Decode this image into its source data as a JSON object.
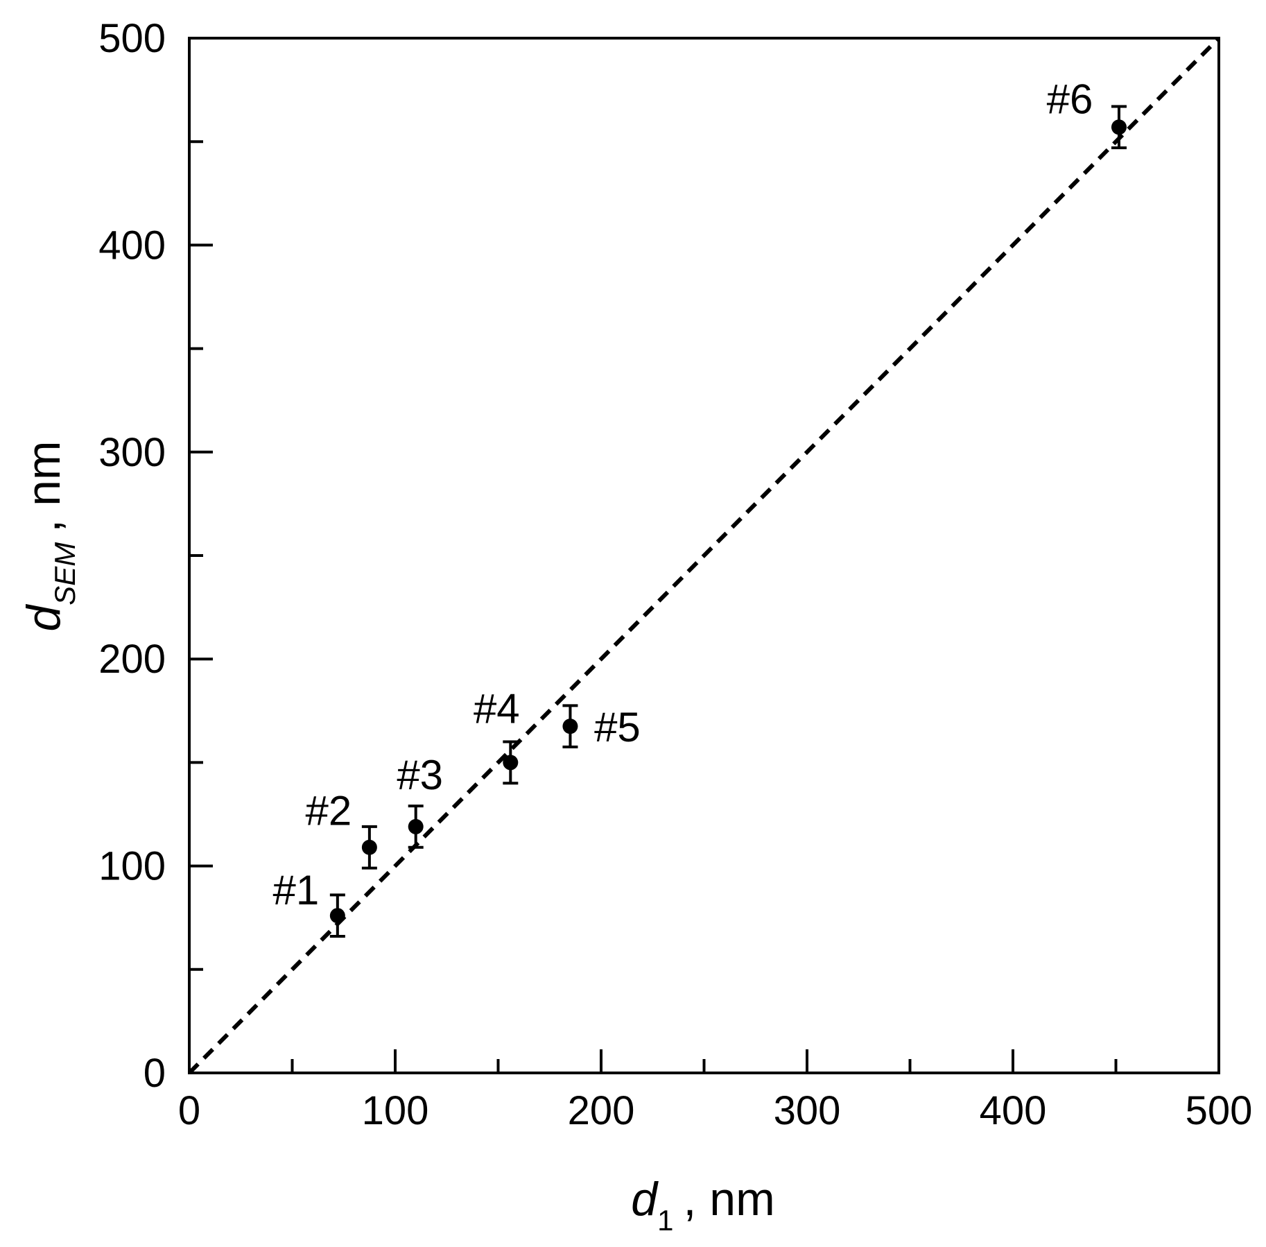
{
  "chart_data": {
    "type": "scatter",
    "x_label": {
      "symbol": "d",
      "subscript": "1",
      "unit": ", nm"
    },
    "y_label": {
      "symbol": "d",
      "subscript": "SEM",
      "unit": ", nm"
    },
    "x": [
      72,
      87.5,
      110,
      156,
      185,
      451.5
    ],
    "y": [
      76,
      109,
      119,
      150,
      167.5,
      457
    ],
    "yerr": [
      10,
      10,
      10,
      10,
      10,
      10
    ],
    "point_labels": [
      "#1",
      "#2",
      "#3",
      "#4",
      "#5",
      "#6"
    ],
    "color": "#000000",
    "xlim": [
      0,
      500
    ],
    "ylim": [
      0,
      500
    ],
    "xticks": [
      0,
      100,
      200,
      300,
      400,
      500
    ],
    "yticks": [
      0,
      100,
      200,
      300,
      400,
      500
    ],
    "xminorticks": [
      50,
      150,
      250,
      350,
      450
    ],
    "yminorticks": [
      50,
      150,
      250,
      350,
      450
    ]
  }
}
